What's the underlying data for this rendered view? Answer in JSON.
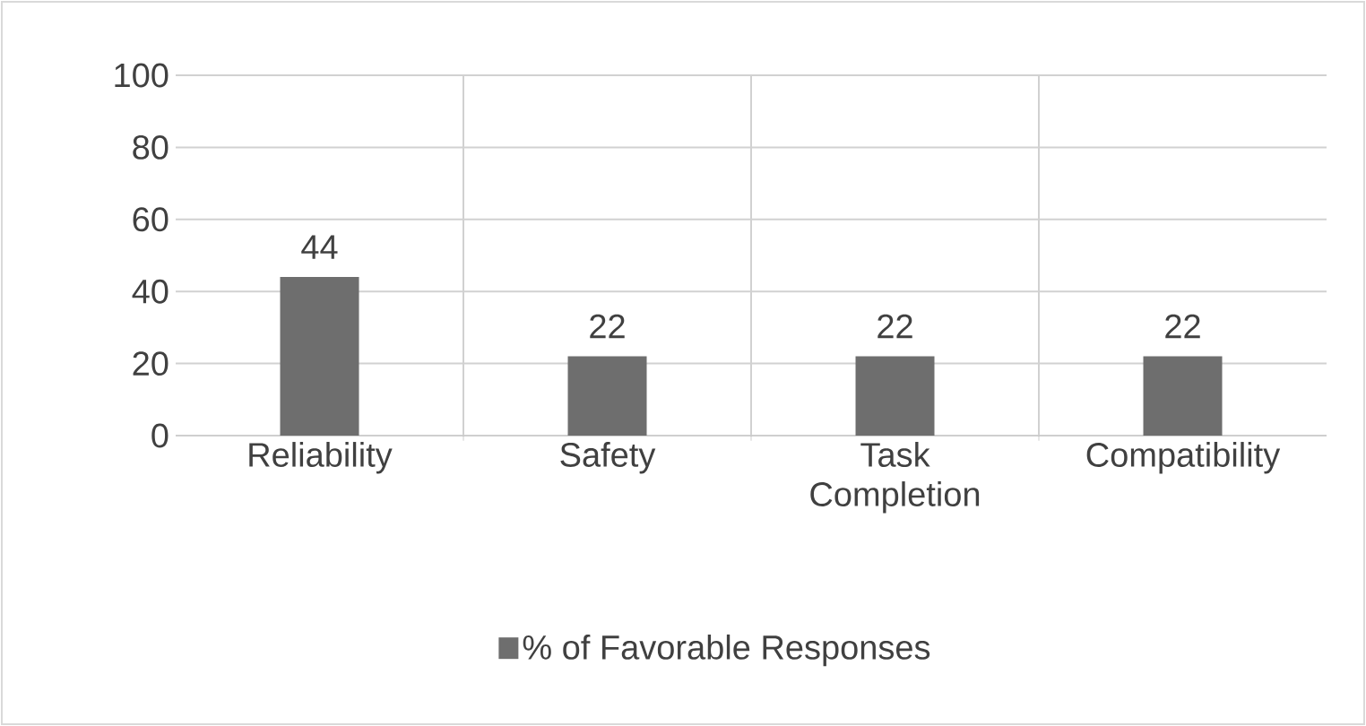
{
  "chart_data": {
    "type": "bar",
    "categories": [
      "Reliability",
      "Safety",
      "Task Completion",
      "Compatibility"
    ],
    "series": [
      {
        "name": "% of Favorable Responses",
        "color": "#6e6e6e",
        "values": [
          44,
          22,
          22,
          22
        ]
      }
    ],
    "ylim": [
      0,
      100
    ],
    "yticks": [
      0,
      20,
      40,
      60,
      80,
      100
    ],
    "grid": true,
    "data_labels": true,
    "legend": "bottom"
  }
}
